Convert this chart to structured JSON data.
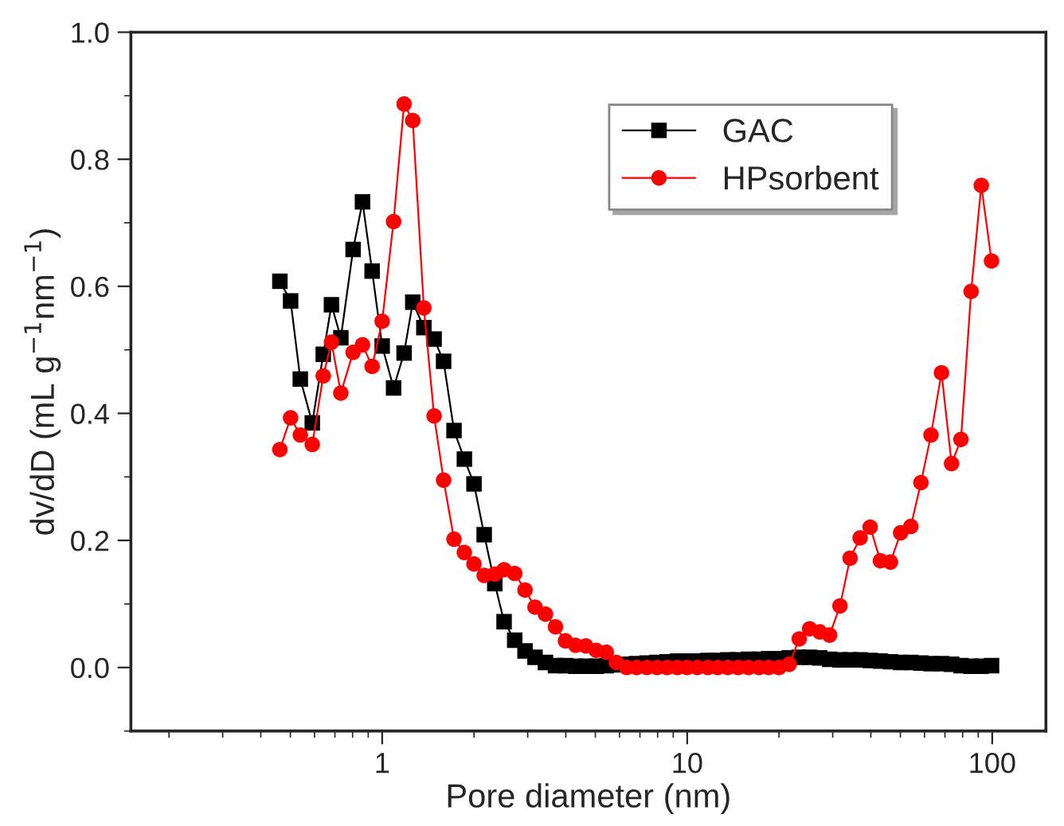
{
  "chart_data": {
    "type": "line",
    "xlabel": "Pore diameter (nm)",
    "ylabel": "dv/dD (mL g$^{−1}$nm$^{−1}$)",
    "log": "x",
    "xlim": [
      0.15,
      150
    ],
    "ylim": [
      -0.1,
      1.0
    ],
    "xticks": [
      1,
      10,
      100
    ],
    "yticks": [
      {
        "value": 0.0,
        "label": "0.0"
      },
      {
        "value": 0.2,
        "label": "0.2"
      },
      {
        "value": 0.4,
        "label": "0.4"
      },
      {
        "value": 0.6,
        "label": "0.6"
      },
      {
        "value": 0.8,
        "label": "0.8"
      },
      {
        "value": 1.0,
        "label": "1.0"
      }
    ],
    "legend": "top right",
    "grid": false,
    "series": [
      {
        "name": "GAC",
        "color": "#000000",
        "marker": "square",
        "x": [
          0.462,
          0.501,
          0.539,
          0.59,
          0.641,
          0.682,
          0.732,
          0.803,
          0.862,
          0.927,
          1.0,
          1.09,
          1.18,
          1.26,
          1.37,
          1.48,
          1.59,
          1.72,
          1.86,
          2.0,
          2.16,
          2.34,
          2.51,
          2.72,
          2.94,
          3.17,
          3.43,
          3.7,
          3.99,
          4.31,
          4.65,
          5.03,
          5.43,
          5.86,
          6.33,
          6.83,
          7.38,
          7.97,
          8.6,
          9.29,
          10.0,
          10.8,
          11.7,
          12.6,
          13.6,
          14.7,
          15.9,
          17.2,
          18.5,
          20.0,
          21.6,
          23.3,
          25.2,
          27.2,
          29.3,
          31.7,
          34.2,
          36.9,
          39.8,
          43.0,
          46.4,
          50.1,
          54.1,
          58.4,
          63.0,
          68.2,
          73.6,
          79.0,
          85.3,
          92.1,
          99.5
        ],
        "values": [
          0.608,
          0.577,
          0.454,
          0.385,
          0.493,
          0.571,
          0.519,
          0.658,
          0.733,
          0.624,
          0.506,
          0.44,
          0.495,
          0.575,
          0.535,
          0.517,
          0.482,
          0.373,
          0.328,
          0.289,
          0.209,
          0.132,
          0.072,
          0.043,
          0.026,
          0.016,
          0.008,
          0.003,
          0.003,
          0.002,
          0.002,
          0.002,
          0.003,
          0.004,
          0.005,
          0.006,
          0.007,
          0.008,
          0.009,
          0.01,
          0.01,
          0.01,
          0.011,
          0.011,
          0.012,
          0.012,
          0.013,
          0.013,
          0.014,
          0.014,
          0.015,
          0.016,
          0.016,
          0.015,
          0.013,
          0.012,
          0.012,
          0.012,
          0.011,
          0.01,
          0.009,
          0.008,
          0.008,
          0.007,
          0.006,
          0.006,
          0.005,
          0.003,
          0.002,
          0.002,
          0.003
        ]
      },
      {
        "name": "HPsorbent",
        "color": "#ff0000",
        "marker": "circle",
        "x": [
          0.462,
          0.501,
          0.539,
          0.59,
          0.641,
          0.682,
          0.732,
          0.803,
          0.862,
          0.927,
          1.0,
          1.09,
          1.18,
          1.26,
          1.37,
          1.48,
          1.59,
          1.72,
          1.86,
          2.0,
          2.16,
          2.34,
          2.51,
          2.72,
          2.94,
          3.17,
          3.43,
          3.7,
          3.99,
          4.31,
          4.65,
          5.03,
          5.43,
          5.86,
          6.33,
          6.83,
          7.38,
          7.97,
          8.6,
          9.29,
          10.0,
          10.8,
          11.7,
          12.6,
          13.6,
          14.7,
          15.9,
          17.2,
          18.5,
          20.0,
          21.6,
          23.3,
          25.2,
          27.2,
          29.3,
          31.7,
          34.2,
          36.9,
          39.8,
          43.0,
          46.4,
          50.1,
          54.1,
          58.4,
          63.0,
          68.2,
          73.6,
          79.0,
          85.3,
          92.1,
          99.5
        ],
        "values": [
          0.343,
          0.393,
          0.366,
          0.351,
          0.459,
          0.512,
          0.432,
          0.496,
          0.508,
          0.474,
          0.545,
          0.702,
          0.887,
          0.861,
          0.566,
          0.396,
          0.295,
          0.202,
          0.181,
          0.163,
          0.145,
          0.147,
          0.154,
          0.148,
          0.122,
          0.095,
          0.084,
          0.064,
          0.042,
          0.035,
          0.034,
          0.027,
          0.024,
          0.008,
          0.0,
          0.0,
          0.0,
          0.0,
          0.0,
          0.0,
          0.0,
          0.0,
          0.0,
          0.0,
          0.0,
          0.0,
          0.0,
          0.0,
          0.0,
          0.0,
          0.005,
          0.045,
          0.061,
          0.056,
          0.051,
          0.097,
          0.172,
          0.204,
          0.221,
          0.168,
          0.166,
          0.212,
          0.222,
          0.291,
          0.366,
          0.464,
          0.321,
          0.359,
          0.592,
          0.759,
          0.64
        ]
      }
    ]
  }
}
